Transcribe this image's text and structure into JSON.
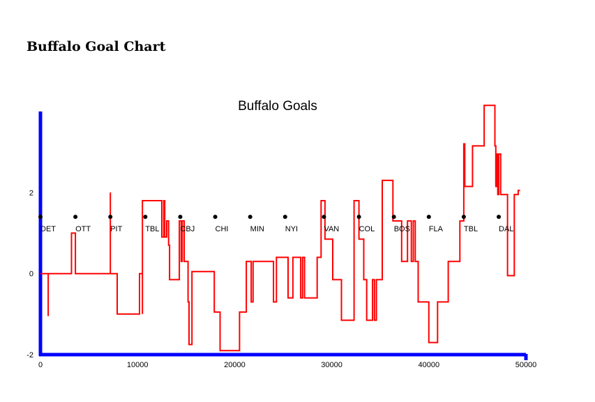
{
  "page": {
    "heading": "Buffalo Goal Chart"
  },
  "chart_data": {
    "type": "line",
    "title": "Buffalo Goals",
    "xlabel": "",
    "ylabel": "",
    "xlim": [
      0,
      50000
    ],
    "ylim": [
      -2,
      4
    ],
    "x_ticks": [
      0,
      10000,
      20000,
      30000,
      40000,
      50000
    ],
    "y_ticks": [
      -2,
      0,
      2
    ],
    "grid": false,
    "colors": {
      "axis": "#0000ff",
      "line": "#ff0000",
      "marker": "#000000"
    },
    "markers": {
      "y": 1.4,
      "points": [
        {
          "x": 0,
          "label": "DET"
        },
        {
          "x": 3600,
          "label": "OTT"
        },
        {
          "x": 7200,
          "label": "PIT"
        },
        {
          "x": 10800,
          "label": "TBL"
        },
        {
          "x": 14400,
          "label": "CBJ"
        },
        {
          "x": 18000,
          "label": "CHI"
        },
        {
          "x": 21600,
          "label": "MIN"
        },
        {
          "x": 25200,
          "label": "NYI"
        },
        {
          "x": 29200,
          "label": "VAN"
        },
        {
          "x": 32800,
          "label": "COL"
        },
        {
          "x": 36400,
          "label": "BOS"
        },
        {
          "x": 40000,
          "label": "FLA"
        },
        {
          "x": 43600,
          "label": "TBL"
        },
        {
          "x": 47200,
          "label": "DAL"
        }
      ]
    },
    "series": [
      {
        "type": "step",
        "points": [
          [
            0,
            0
          ],
          [
            800,
            0
          ],
          [
            800,
            -1.05
          ],
          [
            800,
            0
          ],
          [
            3200,
            0
          ],
          [
            3200,
            1
          ],
          [
            3600,
            1
          ],
          [
            3600,
            0
          ],
          [
            7200,
            0
          ],
          [
            7200,
            2
          ],
          [
            7200,
            0
          ],
          [
            7900,
            0
          ],
          [
            7900,
            -1
          ],
          [
            10200,
            -1
          ],
          [
            10200,
            0
          ],
          [
            10500,
            0
          ],
          [
            10500,
            -1
          ],
          [
            10500,
            1.8
          ],
          [
            12500,
            1.8
          ],
          [
            12500,
            0.9
          ],
          [
            12700,
            0.9
          ],
          [
            12700,
            1.8
          ],
          [
            12800,
            1.8
          ],
          [
            12800,
            0.9
          ],
          [
            13000,
            0.9
          ],
          [
            13000,
            1.3
          ],
          [
            13200,
            1.3
          ],
          [
            13200,
            0.7
          ],
          [
            13300,
            0.7
          ],
          [
            13300,
            -0.15
          ],
          [
            14300,
            -0.15
          ],
          [
            14300,
            1.3
          ],
          [
            14500,
            1.3
          ],
          [
            14500,
            0.3
          ],
          [
            14600,
            0.3
          ],
          [
            14600,
            1.3
          ],
          [
            14800,
            1.3
          ],
          [
            14800,
            0.3
          ],
          [
            15200,
            0.3
          ],
          [
            15200,
            -0.7
          ],
          [
            15300,
            -0.7
          ],
          [
            15300,
            -1.75
          ],
          [
            15600,
            -1.75
          ],
          [
            15600,
            0.05
          ],
          [
            17900,
            0.05
          ],
          [
            17900,
            -0.95
          ],
          [
            18500,
            -0.95
          ],
          [
            18500,
            -1.9
          ],
          [
            20500,
            -1.9
          ],
          [
            20500,
            -0.95
          ],
          [
            21200,
            -0.95
          ],
          [
            21200,
            0.3
          ],
          [
            21700,
            0.3
          ],
          [
            21700,
            -0.7
          ],
          [
            21900,
            -0.7
          ],
          [
            21900,
            0.3
          ],
          [
            24000,
            0.3
          ],
          [
            24000,
            -0.7
          ],
          [
            24300,
            -0.7
          ],
          [
            24300,
            0.4
          ],
          [
            25500,
            0.4
          ],
          [
            25500,
            -0.6
          ],
          [
            26000,
            -0.6
          ],
          [
            26000,
            0.4
          ],
          [
            26800,
            0.4
          ],
          [
            26800,
            -0.6
          ],
          [
            27000,
            -0.6
          ],
          [
            27000,
            0.4
          ],
          [
            27200,
            0.4
          ],
          [
            27200,
            -0.6
          ],
          [
            28500,
            -0.6
          ],
          [
            28500,
            0.4
          ],
          [
            28900,
            0.4
          ],
          [
            28900,
            1.8
          ],
          [
            29300,
            1.8
          ],
          [
            29300,
            0.85
          ],
          [
            30100,
            0.85
          ],
          [
            30100,
            -0.15
          ],
          [
            31000,
            -0.15
          ],
          [
            31000,
            -1.15
          ],
          [
            32300,
            -1.15
          ],
          [
            32300,
            1.8
          ],
          [
            32800,
            1.8
          ],
          [
            32800,
            0.85
          ],
          [
            33300,
            0.85
          ],
          [
            33300,
            -0.15
          ],
          [
            33600,
            -0.15
          ],
          [
            33600,
            -1.15
          ],
          [
            34200,
            -1.15
          ],
          [
            34200,
            -0.15
          ],
          [
            34400,
            -0.15
          ],
          [
            34400,
            -1.15
          ],
          [
            34600,
            -1.15
          ],
          [
            34600,
            -0.15
          ],
          [
            35200,
            -0.15
          ],
          [
            35200,
            2.3
          ],
          [
            36300,
            2.3
          ],
          [
            36300,
            1.3
          ],
          [
            37200,
            1.3
          ],
          [
            37200,
            0.3
          ],
          [
            37800,
            0.3
          ],
          [
            37800,
            1.3
          ],
          [
            38200,
            1.3
          ],
          [
            38200,
            0.3
          ],
          [
            38400,
            0.3
          ],
          [
            38400,
            1.3
          ],
          [
            38600,
            1.3
          ],
          [
            38600,
            0.3
          ],
          [
            38900,
            0.3
          ],
          [
            38900,
            -0.7
          ],
          [
            40000,
            -0.7
          ],
          [
            40000,
            -1.7
          ],
          [
            40900,
            -1.7
          ],
          [
            40900,
            -0.7
          ],
          [
            42000,
            -0.7
          ],
          [
            42000,
            0.3
          ],
          [
            43200,
            0.3
          ],
          [
            43200,
            1.3
          ],
          [
            43600,
            1.3
          ],
          [
            43600,
            3.2
          ],
          [
            43700,
            3.2
          ],
          [
            43700,
            2.15
          ],
          [
            44500,
            2.15
          ],
          [
            44500,
            3.15
          ],
          [
            45700,
            3.15
          ],
          [
            45700,
            4.15
          ],
          [
            46800,
            4.15
          ],
          [
            46800,
            3.15
          ],
          [
            46900,
            3.15
          ],
          [
            46900,
            2.15
          ],
          [
            47000,
            2.15
          ],
          [
            47000,
            2.95
          ],
          [
            47100,
            2.95
          ],
          [
            47100,
            1.95
          ],
          [
            47200,
            1.95
          ],
          [
            47200,
            2.95
          ],
          [
            47400,
            2.95
          ],
          [
            47400,
            1.95
          ],
          [
            48100,
            1.95
          ],
          [
            48100,
            -0.05
          ],
          [
            48800,
            -0.05
          ],
          [
            48800,
            1.95
          ],
          [
            49200,
            1.95
          ],
          [
            49200,
            2.05
          ],
          [
            49400,
            2.05
          ]
        ]
      }
    ]
  }
}
